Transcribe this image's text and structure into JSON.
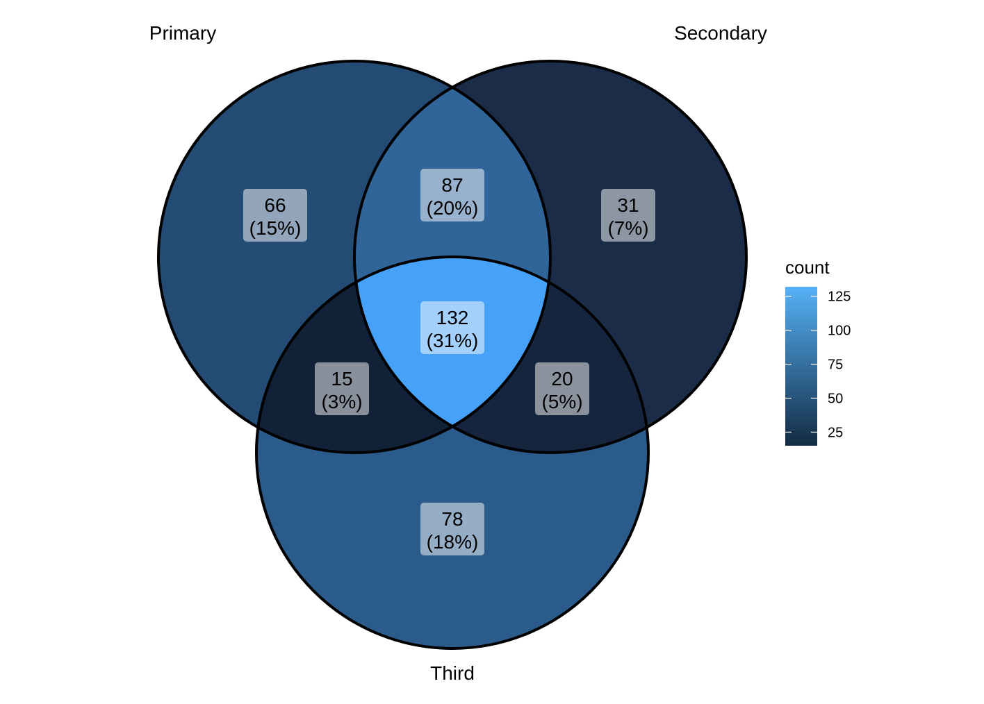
{
  "chart_data": {
    "type": "venn",
    "sets": [
      "Primary",
      "Secondary",
      "Third"
    ],
    "regions": [
      {
        "sets": [
          "Primary"
        ],
        "count": 66,
        "percent": "15%",
        "fill": "#244B74"
      },
      {
        "sets": [
          "Secondary"
        ],
        "count": 31,
        "percent": "7%",
        "fill": "#1A2C47"
      },
      {
        "sets": [
          "Third"
        ],
        "count": 78,
        "percent": "18%",
        "fill": "#2B5B8A"
      },
      {
        "sets": [
          "Primary",
          "Secondary"
        ],
        "count": 87,
        "percent": "20%",
        "fill": "#30659A"
      },
      {
        "sets": [
          "Primary",
          "Third"
        ],
        "count": 15,
        "percent": "3%",
        "fill": "#112137"
      },
      {
        "sets": [
          "Secondary",
          "Third"
        ],
        "count": 20,
        "percent": "5%",
        "fill": "#15253D"
      },
      {
        "sets": [
          "Primary",
          "Secondary",
          "Third"
        ],
        "count": 132,
        "percent": "31%",
        "fill": "#46A1F8"
      }
    ],
    "legend": {
      "title": "count",
      "ticks": [
        25,
        50,
        75,
        100,
        125
      ],
      "range": [
        15,
        132
      ],
      "color_low": "#132B43",
      "color_high": "#56B1F7",
      "placement": "right"
    }
  }
}
